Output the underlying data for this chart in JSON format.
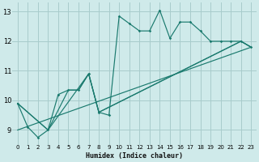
{
  "xlabel": "Humidex (Indice chaleur)",
  "xlim": [
    -0.5,
    23.5
  ],
  "ylim": [
    8.5,
    13.3
  ],
  "yticks": [
    9,
    10,
    11,
    12,
    13
  ],
  "xticks": [
    0,
    1,
    2,
    3,
    4,
    5,
    6,
    7,
    8,
    9,
    10,
    11,
    12,
    13,
    14,
    15,
    16,
    17,
    18,
    19,
    20,
    21,
    22,
    23
  ],
  "bg_color": "#cfeaea",
  "grid_color": "#a8cccc",
  "line_color": "#1a7a6e",
  "main_line": {
    "x": [
      0,
      1,
      2,
      3,
      4,
      5,
      6,
      7,
      8,
      9,
      10,
      11,
      12,
      13,
      14,
      15,
      16,
      17,
      18,
      19,
      20,
      21,
      22,
      23
    ],
    "y": [
      9.9,
      9.1,
      8.75,
      9.0,
      10.2,
      10.35,
      10.35,
      10.9,
      9.6,
      9.5,
      12.85,
      12.6,
      12.35,
      12.35,
      13.05,
      12.1,
      12.65,
      12.65,
      12.35,
      12.0,
      12.0,
      12.0,
      12.0,
      11.8
    ]
  },
  "trend_lines": [
    {
      "x": [
        0,
        3,
        5,
        6,
        7,
        8,
        22,
        23
      ],
      "y": [
        9.9,
        9.0,
        10.35,
        10.35,
        10.9,
        9.6,
        12.0,
        11.8
      ]
    },
    {
      "x": [
        0,
        3,
        7,
        8,
        22,
        23
      ],
      "y": [
        9.9,
        9.0,
        10.9,
        9.6,
        12.0,
        11.8
      ]
    },
    {
      "x": [
        0,
        23
      ],
      "y": [
        9.0,
        11.8
      ]
    }
  ]
}
